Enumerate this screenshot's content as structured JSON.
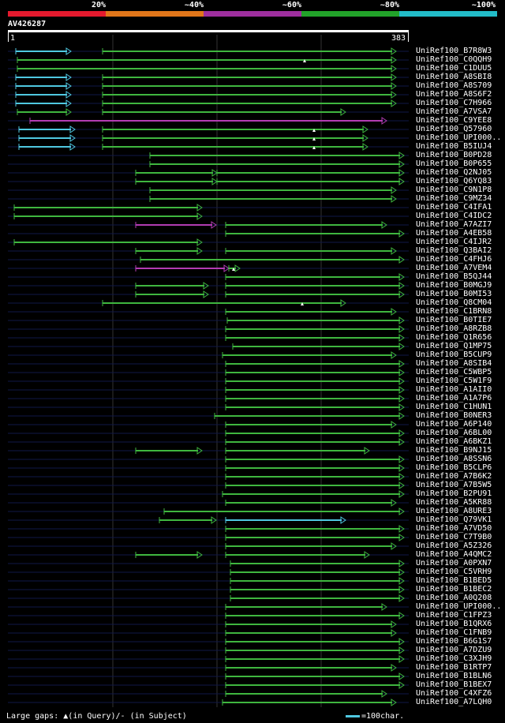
{
  "scale": {
    "labels": [
      "20%",
      "~40%",
      "~60%",
      "~80%",
      "~100%"
    ],
    "colors": [
      "#e41a2e",
      "#e0761a",
      "#9e2f9e",
      "#22a32a",
      "#22bcc8"
    ]
  },
  "query": {
    "id": "AV426287",
    "start": "1",
    "end": "383"
  },
  "colors": {
    "green": "#3fb63f",
    "blue": "#4fc8e0",
    "magenta": "#b23cb2",
    "dark": "#101848",
    "gap_line": "#555555"
  },
  "hits": [
    {
      "label": "UniRef100_B7R8W3",
      "segs": [
        [
          20,
          90,
          "b"
        ],
        [
          130,
          502,
          "g"
        ]
      ],
      "marks": []
    },
    {
      "label": "UniRef100_C0QQH9",
      "segs": [
        [
          22,
          502,
          "g"
        ]
      ],
      "marks": [
        386
      ]
    },
    {
      "label": "UniRef100_C1DUU5",
      "segs": [
        [
          22,
          502,
          "g"
        ]
      ],
      "marks": []
    },
    {
      "label": "UniRef100_A8SBI8",
      "segs": [
        [
          20,
          90,
          "b"
        ],
        [
          130,
          502,
          "g"
        ]
      ],
      "marks": []
    },
    {
      "label": "UniRef100_A8S709",
      "segs": [
        [
          20,
          90,
          "b"
        ],
        [
          130,
          502,
          "g"
        ]
      ],
      "marks": []
    },
    {
      "label": "UniRef100_A8S6F2",
      "segs": [
        [
          20,
          90,
          "b"
        ],
        [
          130,
          502,
          "g"
        ]
      ],
      "marks": []
    },
    {
      "label": "UniRef100_C7H966",
      "segs": [
        [
          20,
          90,
          "b"
        ],
        [
          130,
          502,
          "g"
        ]
      ],
      "marks": []
    },
    {
      "label": "UniRef100_A7VSA7",
      "segs": [
        [
          22,
          90,
          "g"
        ],
        [
          130,
          438,
          "g"
        ]
      ],
      "marks": []
    },
    {
      "label": "UniRef100_C9YEE8",
      "segs": [
        [
          38,
          490,
          "m"
        ]
      ],
      "marks": []
    },
    {
      "label": "UniRef100_Q57960",
      "segs": [
        [
          24,
          95,
          "b"
        ],
        [
          130,
          466,
          "g"
        ]
      ],
      "marks": [
        398
      ]
    },
    {
      "label": "UniRef100_UPI000..",
      "segs": [
        [
          24,
          95,
          "b"
        ],
        [
          130,
          466,
          "g"
        ]
      ],
      "marks": [
        398
      ]
    },
    {
      "label": "UniRef100_B5IUJ4",
      "segs": [
        [
          24,
          95,
          "b"
        ],
        [
          130,
          466,
          "g"
        ]
      ],
      "marks": [
        398
      ]
    },
    {
      "label": "UniRef100_B0PD28",
      "segs": [
        [
          190,
          512,
          "g"
        ]
      ],
      "marks": []
    },
    {
      "label": "UniRef100_B0P655",
      "segs": [
        [
          190,
          512,
          "g"
        ]
      ],
      "marks": []
    },
    {
      "label": "UniRef100_Q2NJ05",
      "segs": [
        [
          172,
          275,
          "g"
        ],
        [
          275,
          512,
          "g"
        ]
      ],
      "marks": []
    },
    {
      "label": "UniRef100_Q6YQ83",
      "segs": [
        [
          172,
          275,
          "g"
        ],
        [
          275,
          512,
          "g"
        ]
      ],
      "marks": []
    },
    {
      "label": "UniRef100_C9N1P8",
      "segs": [
        [
          190,
          502,
          "g"
        ]
      ],
      "marks": []
    },
    {
      "label": "UniRef100_C9MZ34",
      "segs": [
        [
          190,
          502,
          "g"
        ]
      ],
      "marks": []
    },
    {
      "label": "UniRef100_C4IFA1",
      "segs": [
        [
          18,
          256,
          "g"
        ]
      ],
      "marks": []
    },
    {
      "label": "UniRef100_C4IDC2",
      "segs": [
        [
          18,
          256,
          "g"
        ]
      ],
      "marks": []
    },
    {
      "label": "UniRef100_A7AZI7",
      "segs": [
        [
          172,
          274,
          "m"
        ],
        [
          286,
          490,
          "g"
        ]
      ],
      "marks": []
    },
    {
      "label": "UniRef100_A4EB58",
      "segs": [
        [
          286,
          512,
          "g"
        ]
      ],
      "marks": []
    },
    {
      "label": "UniRef100_C4IJR2",
      "segs": [
        [
          18,
          256,
          "g"
        ]
      ],
      "marks": []
    },
    {
      "label": "UniRef100_Q3BAI2",
      "segs": [
        [
          172,
          256,
          "g"
        ],
        [
          286,
          502,
          "g"
        ]
      ],
      "marks": []
    },
    {
      "label": "UniRef100_C4FHJ6",
      "segs": [
        [
          178,
          512,
          "g"
        ]
      ],
      "marks": []
    },
    {
      "label": "UniRef100_A7VEM4",
      "segs": [
        [
          172,
          290,
          "m"
        ],
        [
          290,
          304,
          "g"
        ]
      ],
      "marks": [
        296
      ]
    },
    {
      "label": "UniRef100_B5QJ44",
      "segs": [
        [
          286,
          512,
          "g"
        ]
      ],
      "marks": []
    },
    {
      "label": "UniRef100_B0MGJ9",
      "segs": [
        [
          172,
          264,
          "g"
        ],
        [
          286,
          512,
          "g"
        ]
      ],
      "marks": []
    },
    {
      "label": "UniRef100_B0MI53",
      "segs": [
        [
          172,
          264,
          "g"
        ],
        [
          286,
          512,
          "g"
        ]
      ],
      "marks": []
    },
    {
      "label": "UniRef100_Q8CM04",
      "segs": [
        [
          130,
          438,
          "g"
        ]
      ],
      "marks": [
        383
      ]
    },
    {
      "label": "UniRef100_C1BRN8",
      "segs": [
        [
          286,
          502,
          "g"
        ]
      ],
      "marks": []
    },
    {
      "label": "UniRef100_B0TIE7",
      "segs": [
        [
          288,
          512,
          "g"
        ]
      ],
      "marks": []
    },
    {
      "label": "UniRef100_A8RZB8",
      "segs": [
        [
          286,
          512,
          "g"
        ]
      ],
      "marks": []
    },
    {
      "label": "UniRef100_Q1R656",
      "segs": [
        [
          286,
          512,
          "g"
        ]
      ],
      "marks": []
    },
    {
      "label": "UniRef100_Q1MP75",
      "segs": [
        [
          295,
          512,
          "g"
        ]
      ],
      "marks": []
    },
    {
      "label": "UniRef100_B5CUP9",
      "segs": [
        [
          282,
          502,
          "g"
        ]
      ],
      "marks": []
    },
    {
      "label": "UniRef100_A8SIB4",
      "segs": [
        [
          286,
          512,
          "g"
        ]
      ],
      "marks": []
    },
    {
      "label": "UniRef100_C5WBP5",
      "segs": [
        [
          286,
          512,
          "g"
        ]
      ],
      "marks": []
    },
    {
      "label": "UniRef100_C5W1F9",
      "segs": [
        [
          286,
          512,
          "g"
        ]
      ],
      "marks": []
    },
    {
      "label": "UniRef100_A1AII0",
      "segs": [
        [
          286,
          512,
          "g"
        ]
      ],
      "marks": []
    },
    {
      "label": "UniRef100_A1A7P6",
      "segs": [
        [
          286,
          512,
          "g"
        ]
      ],
      "marks": []
    },
    {
      "label": "UniRef100_C1HUN1",
      "segs": [
        [
          286,
          512,
          "g"
        ]
      ],
      "marks": []
    },
    {
      "label": "UniRef100_B0NER3",
      "segs": [
        [
          272,
          512,
          "g"
        ]
      ],
      "marks": []
    },
    {
      "label": "UniRef100_A6P140",
      "segs": [
        [
          286,
          502,
          "g"
        ]
      ],
      "marks": []
    },
    {
      "label": "UniRef100_A6BL00",
      "segs": [
        [
          286,
          512,
          "g"
        ]
      ],
      "marks": []
    },
    {
      "label": "UniRef100_A6BKZ1",
      "segs": [
        [
          286,
          512,
          "g"
        ]
      ],
      "marks": []
    },
    {
      "label": "UniRef100_B9NJ15",
      "segs": [
        [
          172,
          256,
          "g"
        ],
        [
          286,
          468,
          "g"
        ]
      ],
      "marks": []
    },
    {
      "label": "UniRef100_A8SSN6",
      "segs": [
        [
          286,
          512,
          "g"
        ]
      ],
      "marks": []
    },
    {
      "label": "UniRef100_B5CLP6",
      "segs": [
        [
          286,
          512,
          "g"
        ]
      ],
      "marks": []
    },
    {
      "label": "UniRef100_A7B6K2",
      "segs": [
        [
          286,
          512,
          "g"
        ]
      ],
      "marks": []
    },
    {
      "label": "UniRef100_A7B5W5",
      "segs": [
        [
          286,
          512,
          "g"
        ]
      ],
      "marks": []
    },
    {
      "label": "UniRef100_B2PU91",
      "segs": [
        [
          282,
          512,
          "g"
        ]
      ],
      "marks": []
    },
    {
      "label": "UniRef100_A5KR88",
      "segs": [
        [
          286,
          502,
          "g"
        ]
      ],
      "marks": []
    },
    {
      "label": "UniRef100_A8URE3",
      "segs": [
        [
          208,
          512,
          "g"
        ]
      ],
      "marks": []
    },
    {
      "label": "UniRef100_Q79VK1",
      "segs": [
        [
          202,
          274,
          "g"
        ],
        [
          286,
          438,
          "b"
        ]
      ],
      "marks": []
    },
    {
      "label": "UniRef100_A7VD50",
      "segs": [
        [
          286,
          512,
          "g"
        ]
      ],
      "marks": []
    },
    {
      "label": "UniRef100_C7T9B0",
      "segs": [
        [
          286,
          512,
          "g"
        ]
      ],
      "marks": []
    },
    {
      "label": "UniRef100_A5Z326",
      "segs": [
        [
          286,
          502,
          "g"
        ]
      ],
      "marks": []
    },
    {
      "label": "UniRef100_A4QMC2",
      "segs": [
        [
          172,
          256,
          "g"
        ],
        [
          286,
          468,
          "g"
        ]
      ],
      "marks": []
    },
    {
      "label": "UniRef100_A0PXN7",
      "segs": [
        [
          292,
          512,
          "g"
        ]
      ],
      "marks": []
    },
    {
      "label": "UniRef100_C5VRH9",
      "segs": [
        [
          292,
          512,
          "g"
        ]
      ],
      "marks": []
    },
    {
      "label": "UniRef100_B1BED5",
      "segs": [
        [
          292,
          512,
          "g"
        ]
      ],
      "marks": []
    },
    {
      "label": "UniRef100_B1BEC2",
      "segs": [
        [
          292,
          512,
          "g"
        ]
      ],
      "marks": []
    },
    {
      "label": "UniRef100_A0Q208",
      "segs": [
        [
          292,
          512,
          "g"
        ]
      ],
      "marks": []
    },
    {
      "label": "UniRef100_UPI000..",
      "segs": [
        [
          286,
          490,
          "g"
        ]
      ],
      "marks": []
    },
    {
      "label": "UniRef100_C1FPZ3",
      "segs": [
        [
          286,
          512,
          "g"
        ]
      ],
      "marks": []
    },
    {
      "label": "UniRef100_B1QRX6",
      "segs": [
        [
          286,
          502,
          "g"
        ]
      ],
      "marks": []
    },
    {
      "label": "UniRef100_C1FNB9",
      "segs": [
        [
          286,
          502,
          "g"
        ]
      ],
      "marks": []
    },
    {
      "label": "UniRef100_B6G1S7",
      "segs": [
        [
          286,
          512,
          "g"
        ]
      ],
      "marks": []
    },
    {
      "label": "UniRef100_A7DZU9",
      "segs": [
        [
          286,
          512,
          "g"
        ]
      ],
      "marks": []
    },
    {
      "label": "UniRef100_C3XJH9",
      "segs": [
        [
          286,
          512,
          "g"
        ]
      ],
      "marks": []
    },
    {
      "label": "UniRef100_B1RTP7",
      "segs": [
        [
          286,
          502,
          "g"
        ]
      ],
      "marks": []
    },
    {
      "label": "UniRef100_B1BLN6",
      "segs": [
        [
          286,
          512,
          "g"
        ]
      ],
      "marks": []
    },
    {
      "label": "UniRef100_B1BEX7",
      "segs": [
        [
          286,
          512,
          "g"
        ]
      ],
      "marks": []
    },
    {
      "label": "UniRef100_C4XFZ6",
      "segs": [
        [
          286,
          490,
          "g"
        ]
      ],
      "marks": []
    },
    {
      "label": "UniRef100_A7LQH0",
      "segs": [
        [
          282,
          502,
          "g"
        ]
      ],
      "marks": []
    }
  ],
  "legend": {
    "gaps_prefix": "Large gaps:",
    "gaps_query": "(in Query)/",
    "gaps_subject": "- (in Subject)",
    "scale_text": "=100char."
  }
}
